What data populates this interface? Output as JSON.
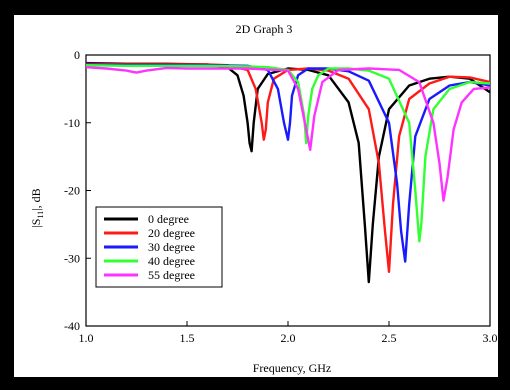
{
  "chart_data": {
    "type": "line",
    "title": "2D Graph 3",
    "xlabel": "Frequency, GHz",
    "ylabel_main": "|S",
    "ylabel_sub": "11",
    "ylabel_tail": "|, dB",
    "xlim": [
      1.0,
      3.0
    ],
    "ylim": [
      -40,
      0
    ],
    "xticks": [
      "1.0",
      "1.5",
      "2.0",
      "2.5",
      "3.0"
    ],
    "yticks": [
      "0",
      "-10",
      "-20",
      "-30",
      "-40"
    ],
    "xtick_values": [
      1.0,
      1.5,
      2.0,
      2.5,
      3.0
    ],
    "ytick_values": [
      0,
      -10,
      -20,
      -30,
      -40
    ],
    "grid": false,
    "legend_position": "bottom-left",
    "series": [
      {
        "name": "0 degree",
        "color": "#000000",
        "x": [
          1.0,
          1.2,
          1.4,
          1.6,
          1.7,
          1.75,
          1.78,
          1.8,
          1.81,
          1.82,
          1.83,
          1.85,
          1.9,
          2.0,
          2.1,
          2.2,
          2.3,
          2.35,
          2.38,
          2.4,
          2.42,
          2.45,
          2.5,
          2.6,
          2.7,
          2.8,
          2.9,
          3.0
        ],
        "y": [
          -1.2,
          -1.3,
          -1.3,
          -1.4,
          -1.8,
          -3,
          -6,
          -10,
          -13,
          -14.2,
          -10,
          -5,
          -2.8,
          -2,
          -2.2,
          -3,
          -7,
          -13,
          -25,
          -33.5,
          -25,
          -15,
          -8,
          -4.5,
          -3.5,
          -3.2,
          -3.5,
          -5.5
        ]
      },
      {
        "name": "20 degree",
        "color": "#ff1a1a",
        "x": [
          1.0,
          1.2,
          1.4,
          1.6,
          1.7,
          1.8,
          1.84,
          1.87,
          1.88,
          1.89,
          1.9,
          1.93,
          2.0,
          2.1,
          2.2,
          2.3,
          2.4,
          2.45,
          2.48,
          2.5,
          2.52,
          2.55,
          2.6,
          2.7,
          2.8,
          2.9,
          3.0
        ],
        "y": [
          -1.3,
          -1.4,
          -1.4,
          -1.4,
          -1.5,
          -2.2,
          -5,
          -10,
          -12.5,
          -11,
          -7,
          -3.5,
          -2.2,
          -2,
          -2.3,
          -3.5,
          -8,
          -16,
          -26,
          -32,
          -22,
          -12,
          -6.5,
          -4.2,
          -3.2,
          -3.3,
          -4
        ]
      },
      {
        "name": "30 degree",
        "color": "#1a1aff",
        "x": [
          1.0,
          1.2,
          1.4,
          1.6,
          1.8,
          1.9,
          1.95,
          1.98,
          2.0,
          2.01,
          2.02,
          2.05,
          2.1,
          2.2,
          2.3,
          2.4,
          2.5,
          2.54,
          2.56,
          2.58,
          2.6,
          2.63,
          2.7,
          2.8,
          2.9,
          3.0
        ],
        "y": [
          -1.4,
          -1.5,
          -1.5,
          -1.5,
          -1.6,
          -2.2,
          -5,
          -10,
          -12.5,
          -10,
          -6,
          -3,
          -2,
          -2,
          -2.4,
          -3.8,
          -10,
          -19,
          -26,
          -30.5,
          -22,
          -12,
          -6.5,
          -4.5,
          -4,
          -4.5
        ]
      },
      {
        "name": "40 degree",
        "color": "#33ff33",
        "x": [
          1.0,
          1.2,
          1.4,
          1.6,
          1.8,
          1.9,
          2.0,
          2.05,
          2.08,
          2.09,
          2.1,
          2.12,
          2.15,
          2.2,
          2.3,
          2.4,
          2.5,
          2.6,
          2.63,
          2.65,
          2.66,
          2.68,
          2.72,
          2.8,
          2.9,
          3.0
        ],
        "y": [
          -1.5,
          -1.6,
          -1.6,
          -1.6,
          -1.7,
          -1.8,
          -2.2,
          -4,
          -9,
          -13,
          -9,
          -5,
          -3,
          -2,
          -2,
          -2.3,
          -3.5,
          -10,
          -20,
          -27.5,
          -25,
          -15,
          -8,
          -5,
          -4,
          -4.2
        ]
      },
      {
        "name": "55 degree",
        "color": "#ff33ff",
        "x": [
          1.0,
          1.1,
          1.2,
          1.25,
          1.3,
          1.4,
          1.5,
          1.6,
          1.8,
          2.0,
          2.05,
          2.09,
          2.11,
          2.13,
          2.17,
          2.25,
          2.4,
          2.55,
          2.65,
          2.72,
          2.75,
          2.77,
          2.79,
          2.82,
          2.86,
          2.92,
          3.0
        ],
        "y": [
          -1.8,
          -2,
          -2.3,
          -2.6,
          -2.3,
          -1.9,
          -2,
          -2,
          -2,
          -2.3,
          -5,
          -11,
          -14,
          -9,
          -4,
          -2.2,
          -2,
          -2.2,
          -4,
          -10,
          -16,
          -21.5,
          -18,
          -11,
          -7,
          -5,
          -4.8
        ]
      }
    ]
  }
}
